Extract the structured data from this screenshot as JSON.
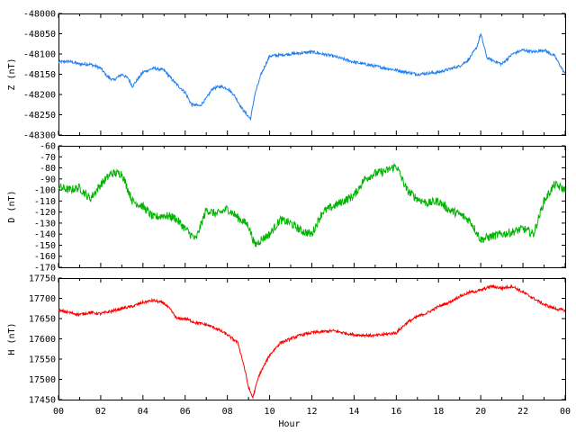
{
  "chart_data": [
    {
      "type": "line",
      "ylabel": "Z (nT)",
      "ylim": [
        -48300,
        -48000
      ],
      "yticks": [
        -48000,
        -48050,
        -48100,
        -48150,
        -48200,
        -48250,
        -48300
      ],
      "xlim": [
        0,
        24
      ],
      "color": "#1f7ff0",
      "grid": false,
      "x": [
        0,
        0.5,
        1,
        1.5,
        2,
        2.3,
        2.6,
        3,
        3.3,
        3.5,
        4,
        4.5,
        5,
        5.5,
        6,
        6.3,
        6.7,
        7,
        7.3,
        7.7,
        8,
        8.3,
        8.7,
        9,
        9.1,
        9.3,
        9.6,
        10,
        11,
        12,
        13,
        14,
        15,
        16,
        17,
        18,
        19,
        19.4,
        19.8,
        20,
        20.3,
        21,
        21.5,
        22,
        22.5,
        23,
        23.5,
        24
      ],
      "values": [
        -48120,
        -48118,
        -48125,
        -48125,
        -48135,
        -48155,
        -48165,
        -48150,
        -48160,
        -48180,
        -48145,
        -48135,
        -48140,
        -48170,
        -48195,
        -48225,
        -48228,
        -48210,
        -48185,
        -48180,
        -48185,
        -48200,
        -48235,
        -48255,
        -48260,
        -48200,
        -48150,
        -48105,
        -48100,
        -48095,
        -48105,
        -48120,
        -48130,
        -48140,
        -48150,
        -48145,
        -48130,
        -48115,
        -48085,
        -48050,
        -48110,
        -48125,
        -48100,
        -48090,
        -48095,
        -48090,
        -48105,
        -48150
      ]
    },
    {
      "type": "line",
      "ylabel": "D (nT)",
      "ylim": [
        -170,
        -60
      ],
      "yticks": [
        -60,
        -70,
        -80,
        -90,
        -100,
        -110,
        -120,
        -130,
        -140,
        -150,
        -160,
        -170
      ],
      "xlim": [
        0,
        24
      ],
      "color": "#00b400",
      "grid": false,
      "x": [
        0,
        0.5,
        1,
        1.5,
        2,
        2.5,
        3,
        3.5,
        4,
        4.5,
        5,
        5.5,
        6,
        6.5,
        7,
        7.5,
        8,
        8.5,
        9,
        9.3,
        9.6,
        10,
        10.5,
        11,
        11.5,
        12,
        12.5,
        13,
        13.5,
        14,
        14.5,
        15,
        15.5,
        16,
        16.5,
        17,
        17.5,
        18,
        18.5,
        19,
        19.5,
        20,
        20.5,
        21,
        21.5,
        22,
        22.5,
        23,
        23.5,
        24
      ],
      "values": [
        -97,
        -100,
        -98,
        -108,
        -95,
        -85,
        -85,
        -110,
        -115,
        -125,
        -123,
        -125,
        -135,
        -145,
        -118,
        -122,
        -117,
        -125,
        -132,
        -150,
        -145,
        -140,
        -127,
        -130,
        -137,
        -140,
        -120,
        -115,
        -110,
        -105,
        -90,
        -85,
        -83,
        -78,
        -100,
        -108,
        -112,
        -110,
        -118,
        -122,
        -128,
        -145,
        -142,
        -140,
        -138,
        -135,
        -140,
        -110,
        -95,
        -100
      ]
    },
    {
      "type": "line",
      "ylabel": "H (nT)",
      "xlabel": "Hour",
      "ylim": [
        17450,
        17750
      ],
      "yticks": [
        17750,
        17700,
        17650,
        17600,
        17550,
        17500,
        17450
      ],
      "xlim": [
        0,
        24
      ],
      "xticks": [
        "00",
        "02",
        "04",
        "06",
        "08",
        "10",
        "12",
        "14",
        "16",
        "18",
        "20",
        "22",
        "00"
      ],
      "color": "#ff0000",
      "grid": false,
      "x": [
        0,
        0.5,
        1,
        1.5,
        2,
        2.5,
        3,
        3.5,
        4,
        4.5,
        5,
        5.3,
        5.6,
        6,
        6.5,
        7,
        7.5,
        8,
        8.5,
        8.8,
        9.0,
        9.2,
        9.5,
        10,
        10.5,
        11,
        11.5,
        12,
        13,
        14,
        15,
        16,
        16.5,
        17,
        17.5,
        18,
        18.5,
        19,
        19.5,
        20,
        20.5,
        21,
        21.5,
        22,
        22.5,
        23,
        23.5,
        24
      ],
      "values": [
        17670,
        17665,
        17660,
        17665,
        17662,
        17668,
        17675,
        17680,
        17690,
        17695,
        17688,
        17672,
        17650,
        17650,
        17640,
        17635,
        17625,
        17610,
        17590,
        17530,
        17480,
        17455,
        17510,
        17560,
        17590,
        17600,
        17610,
        17615,
        17620,
        17610,
        17608,
        17615,
        17640,
        17655,
        17665,
        17680,
        17690,
        17705,
        17715,
        17720,
        17730,
        17725,
        17730,
        17715,
        17700,
        17685,
        17675,
        17670
      ]
    }
  ]
}
